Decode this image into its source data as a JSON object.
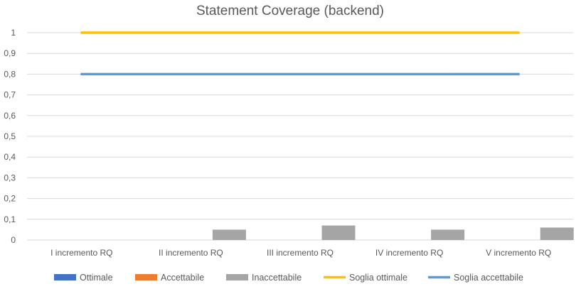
{
  "chart_data": {
    "type": "bar",
    "title": "Statement Coverage (backend)",
    "xlabel": "",
    "ylabel": "",
    "categories": [
      "I incremento RQ",
      "II incremento RQ",
      "III incremento RQ",
      "IV incremento RQ",
      "V incremento RQ"
    ],
    "ylim": [
      0,
      1
    ],
    "yticks": [
      "0",
      "0,1",
      "0,2",
      "0,3",
      "0,4",
      "0,5",
      "0,6",
      "0,7",
      "0,8",
      "0,9",
      "1"
    ],
    "grid": true,
    "legend_position": "bottom",
    "series": [
      {
        "name": "Ottimale",
        "kind": "bar",
        "color": "#4472C4",
        "values": [
          0,
          0,
          0,
          0,
          0
        ]
      },
      {
        "name": "Accettabile",
        "kind": "bar",
        "color": "#ED7D31",
        "values": [
          0,
          0,
          0,
          0,
          0
        ]
      },
      {
        "name": "Inaccettabile",
        "kind": "bar",
        "color": "#A5A5A5",
        "values": [
          0,
          0.05,
          0.07,
          0.05,
          0.06
        ]
      },
      {
        "name": "Soglia ottimale",
        "kind": "line",
        "color": "#FFC000",
        "values": [
          1,
          1,
          1,
          1,
          1
        ]
      },
      {
        "name": "Soglia accettabile",
        "kind": "line",
        "color": "#5B9BD5",
        "values": [
          0.8,
          0.8,
          0.8,
          0.8,
          0.8
        ]
      }
    ]
  }
}
